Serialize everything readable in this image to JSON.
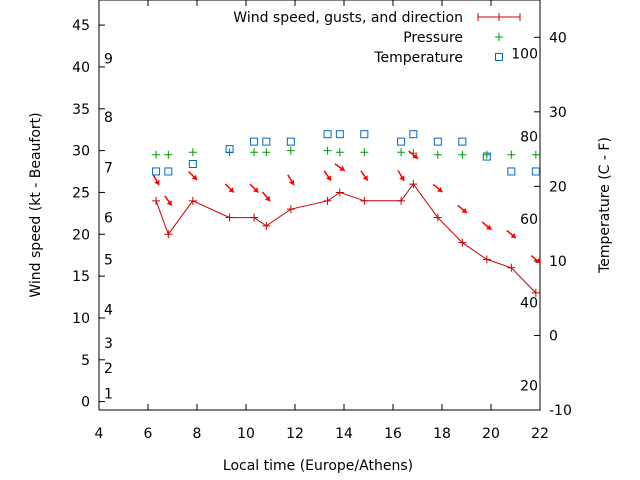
{
  "chart_data": {
    "type": "line",
    "xlabel": "Local time (Europe/Athens)",
    "ylabel": "Wind speed (kt - Beaufort)",
    "y2label": "Temperature (C - F)",
    "xlim": [
      4,
      22
    ],
    "ylim": [
      -1,
      48
    ],
    "y2lim": [
      -10,
      45
    ],
    "x_ticks": [
      4,
      6,
      8,
      10,
      12,
      14,
      16,
      18,
      20,
      22
    ],
    "y_ticks": [
      0,
      5,
      10,
      15,
      20,
      25,
      30,
      35,
      40,
      45
    ],
    "y2_ticks": [
      -10,
      0,
      10,
      20,
      30,
      40
    ],
    "beaufort_labels": [
      {
        "text": "1",
        "kt": 1
      },
      {
        "text": "2",
        "kt": 4
      },
      {
        "text": "3",
        "kt": 7
      },
      {
        "text": "4",
        "kt": 11
      },
      {
        "text": "5",
        "kt": 17
      },
      {
        "text": "6",
        "kt": 22
      },
      {
        "text": "7",
        "kt": 28
      },
      {
        "text": "8",
        "kt": 34
      },
      {
        "text": "9",
        "kt": 41
      }
    ],
    "fahrenheit_labels": [
      {
        "text": "20",
        "c": -6.7
      },
      {
        "text": "40",
        "c": 4.4
      },
      {
        "text": "60",
        "c": 15.6
      },
      {
        "text": "80",
        "c": 26.7
      },
      {
        "text": "100",
        "c": 37.8
      }
    ],
    "legend": {
      "position": "top-right",
      "entries": [
        "Wind speed, gusts, and direction",
        "Pressure",
        "Temperature"
      ]
    },
    "colors": {
      "wind": "#cc0000",
      "pressure": "#009900",
      "temperature": "#0066cc",
      "arrow": "#ff0000"
    },
    "series": [
      {
        "name": "Wind speed, gusts, and direction",
        "style": "line-with-plus",
        "x": [
          6.33,
          6.83,
          7.83,
          9.33,
          10.33,
          10.83,
          11.83,
          13.33,
          13.83,
          14.83,
          16.33,
          16.83,
          17.83,
          18.83,
          19.83,
          20.83,
          21.83
        ],
        "y": [
          24,
          20,
          24,
          22,
          22,
          21,
          23,
          24,
          25,
          24,
          24,
          26,
          22,
          19,
          17,
          16,
          13
        ]
      },
      {
        "name": "Pressure",
        "style": "plus",
        "x": [
          6.33,
          6.83,
          7.83,
          9.33,
          10.33,
          10.83,
          11.83,
          13.33,
          13.83,
          14.83,
          16.33,
          16.83,
          17.83,
          18.83,
          19.83,
          20.83,
          21.83
        ],
        "y": [
          29.5,
          29.5,
          29.8,
          29.8,
          29.8,
          29.8,
          30,
          30,
          29.8,
          29.8,
          29.8,
          29.7,
          29.5,
          29.5,
          29.5,
          29.5,
          29.5
        ]
      },
      {
        "name": "Temperature",
        "style": "square",
        "axis": "y2",
        "x": [
          6.33,
          6.83,
          7.83,
          9.33,
          10.33,
          10.83,
          11.83,
          13.33,
          13.83,
          14.83,
          16.33,
          16.83,
          17.83,
          18.83,
          19.83,
          20.83,
          21.83
        ],
        "y": [
          22,
          22,
          23,
          25,
          26,
          26,
          26,
          27,
          27,
          27,
          26,
          27,
          26,
          26,
          24,
          22,
          22
        ]
      }
    ],
    "wind_direction": {
      "x": [
        6.33,
        6.83,
        7.83,
        9.33,
        10.33,
        10.83,
        11.83,
        13.33,
        13.83,
        14.83,
        16.33,
        16.83,
        17.83,
        18.83,
        19.83,
        20.83,
        21.83
      ],
      "y": [
        26.5,
        24,
        27,
        25.5,
        25.5,
        24.5,
        26.5,
        27,
        28,
        27,
        27,
        29.5,
        25.5,
        23,
        21,
        20,
        17
      ],
      "toward_angle_deg": [
        -60,
        -55,
        -45,
        -45,
        -45,
        -50,
        -60,
        -55,
        -35,
        -55,
        -60,
        -40,
        -40,
        -40,
        -40,
        -40,
        -40
      ]
    }
  }
}
